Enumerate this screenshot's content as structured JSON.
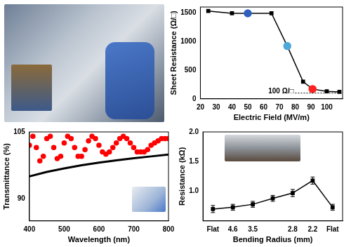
{
  "chart_data": [
    {
      "type": "line",
      "x_label": "Electric Field (MV/m)",
      "y_label": "Sheet Resistance (Ω/□)",
      "series": [
        {
          "x": [
            25,
            40,
            50,
            65,
            75,
            85,
            91,
            100,
            108
          ],
          "values": [
            1530,
            1490,
            1490,
            1490,
            920,
            300,
            170,
            130,
            120
          ],
          "color": "#000000",
          "colors": [
            "#000000",
            "#000000",
            "#2f5fbf",
            "#000000",
            "#4fa8d8",
            "#000000",
            "#ff2020",
            "#000000",
            "#000000"
          ],
          "marker": "square",
          "line_style": "solid"
        }
      ],
      "xlim": [
        20,
        110
      ],
      "xticks": [
        20,
        30,
        40,
        50,
        60,
        70,
        80,
        90,
        100
      ],
      "ylim": [
        0,
        1600
      ],
      "yticks": [
        0,
        500,
        1000,
        1500
      ],
      "grid": false,
      "annotations": [
        {
          "text": "100 Ω/□",
          "x": 80,
          "y": 100
        }
      ]
    },
    {
      "type": "line",
      "x_label": "Wavelength (nm)",
      "y_label": "Transmittance (%)",
      "series": [
        {
          "x": [
            400,
            410,
            420,
            430,
            440,
            450,
            460,
            470,
            480,
            490,
            500,
            510,
            520,
            530,
            540,
            550,
            560,
            570,
            580,
            590,
            600,
            610,
            620,
            630,
            640,
            650,
            660,
            670,
            680,
            690,
            700,
            710,
            720,
            730,
            740,
            750,
            760,
            770,
            780,
            790,
            800
          ],
          "values": [
            102,
            104,
            101.5,
            98.5,
            99.5,
            103.5,
            104,
            101.5,
            99,
            99.5,
            102.5,
            104,
            103.5,
            101.5,
            99.5,
            99.5,
            101,
            103,
            104,
            103.5,
            102,
            100.5,
            100,
            100.5,
            101.5,
            102.5,
            103.5,
            104,
            103.5,
            102.5,
            101.5,
            100.5,
            100.5,
            100.5,
            101,
            102,
            102.5,
            103,
            103.5,
            103.5,
            103.5
          ],
          "color": "#ff0000",
          "marker": "circle",
          "line_style": "none"
        },
        {
          "x": [
            400,
            450,
            500,
            550,
            600,
            650,
            700,
            750,
            800
          ],
          "values": [
            95,
            96,
            96.8,
            97.5,
            98.1,
            98.6,
            99.1,
            99.5,
            99.9
          ],
          "color": "#000000",
          "marker": "none",
          "line_style": "solid"
        }
      ],
      "xlim": [
        400,
        800
      ],
      "xticks": [
        400,
        500,
        600,
        700,
        800
      ],
      "ylim": [
        85,
        105
      ],
      "yticks": [
        90,
        105
      ],
      "grid": false
    },
    {
      "type": "line",
      "x_label": "Bending Radius (mm)",
      "y_label": "Resistance (kΩ)",
      "categories": [
        "Flat",
        "4.6",
        "3.5",
        null,
        "2.8",
        "2.2",
        "Flat"
      ],
      "values": [
        0.7,
        0.73,
        0.78,
        0.88,
        0.97,
        1.18,
        0.73
      ],
      "errors": [
        0.06,
        0.05,
        0.05,
        0.05,
        0.06,
        0.06,
        0.05
      ],
      "color": "#000000",
      "marker": "square",
      "line_style": "solid",
      "ylim": [
        0.5,
        2.0
      ],
      "yticks": [
        {
          "value": 1,
          "label": "1.0"
        },
        1.5,
        {
          "value": 2,
          "label": "2.0"
        }
      ],
      "grid": false
    }
  ]
}
